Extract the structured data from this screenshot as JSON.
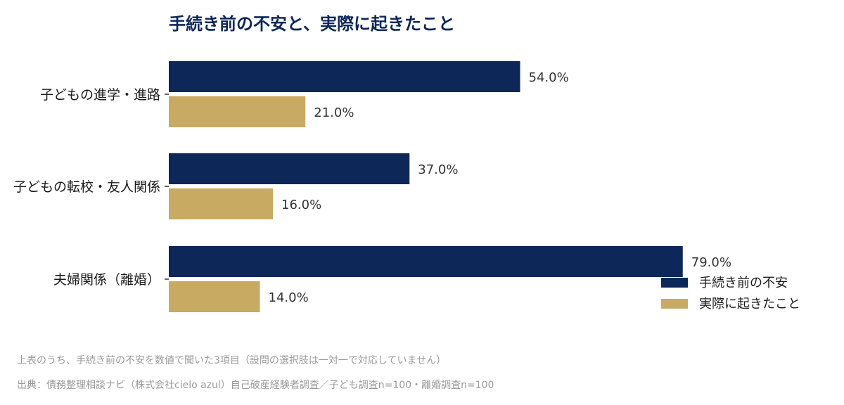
{
  "chart_data": {
    "type": "bar",
    "orientation": "horizontal",
    "title": "手続き前の不安と、実際に起きたこと",
    "categories": [
      "子どもの進学・進路",
      "子どもの転校・友人関係",
      "夫婦関係（離婚）"
    ],
    "series": [
      {
        "name": "手続き前の不安",
        "values": [
          54.0,
          37.0,
          79.0
        ],
        "labels": [
          "54.0%",
          "37.0%",
          "79.0%"
        ],
        "color": "#0d2758"
      },
      {
        "name": "実際に起きたこと",
        "values": [
          21.0,
          16.0,
          14.0
        ],
        "labels": [
          "21.0%",
          "16.0%",
          "14.0%"
        ],
        "color": "#c8aa63"
      }
    ],
    "xlim": [
      0,
      100
    ],
    "grid": false,
    "legend_position": "bottom-right"
  },
  "notes": {
    "note": "上表のうち、手続き前の不安を数値で聞いた3項目（設問の選択肢は一対一で対応していません）",
    "source": "出典：債務整理相談ナビ（株式会社cielo azul）自己破産経験者調査／子ども調査n=100・離婚調査n=100"
  }
}
